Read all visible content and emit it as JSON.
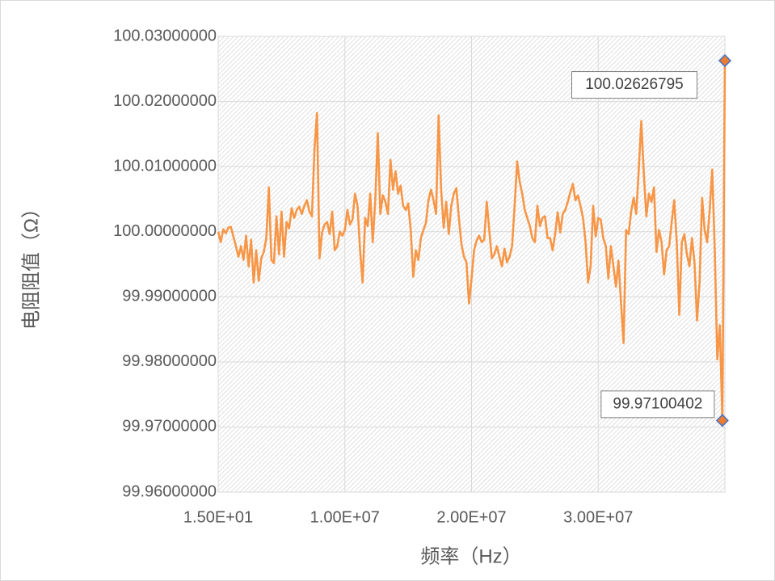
{
  "chart_data": {
    "type": "line",
    "x_title": "频率（Hz）",
    "y_title": "电阻阻值（Ω）",
    "xlim": [
      15,
      40000015
    ],
    "ylim": [
      99.96,
      100.03
    ],
    "xticks": [
      {
        "value": 15,
        "label": "1.50E+01"
      },
      {
        "value": 10000015,
        "label": "1.00E+07"
      },
      {
        "value": 20000015,
        "label": "2.00E+07"
      },
      {
        "value": 30000015,
        "label": "3.00E+07"
      }
    ],
    "yticks": [
      {
        "value": 99.96,
        "label": "99.96000000"
      },
      {
        "value": 99.97,
        "label": "99.97000000"
      },
      {
        "value": 99.98,
        "label": "99.98000000"
      },
      {
        "value": 99.99,
        "label": "99.99000000"
      },
      {
        "value": 100.0,
        "label": "100.00000000"
      },
      {
        "value": 100.01,
        "label": "100.01000000"
      },
      {
        "value": 100.02,
        "label": "100.02000000"
      },
      {
        "value": 100.03,
        "label": "100.03000000"
      }
    ],
    "grid": true,
    "series": [
      {
        "color": "#f79646",
        "x": [
          15,
          200015,
          400015,
          600015,
          800015,
          1000015,
          1200015,
          1400015,
          1600015,
          1800015,
          2000015,
          2200015,
          2400015,
          2600015,
          2800015,
          3000015,
          3200015,
          3400015,
          3600015,
          3800015,
          4000015,
          4200015,
          4400015,
          4600015,
          4800015,
          5000015,
          5200015,
          5400015,
          5600015,
          5800015,
          6000015,
          6200015,
          6400015,
          6600015,
          6800015,
          7000015,
          7200015,
          7400015,
          7600015,
          7800015,
          8000015,
          8200015,
          8400015,
          8600015,
          8800015,
          9000015,
          9200015,
          9400015,
          9600015,
          9800015,
          10000015,
          10200015,
          10400015,
          10600015,
          10800015,
          11000015,
          11200015,
          11400015,
          11600015,
          11800015,
          12000015,
          12200015,
          12400015,
          12600015,
          12800015,
          13000015,
          13200015,
          13400015,
          13600015,
          13800015,
          14000015,
          14200015,
          14400015,
          14600015,
          14800015,
          15000015,
          15200015,
          15400015,
          15600015,
          15800015,
          16000015,
          16200015,
          16400015,
          16600015,
          16800015,
          17000015,
          17200015,
          17400015,
          17600015,
          17800015,
          18000015,
          18200015,
          18400015,
          18600015,
          18800015,
          19000015,
          19200015,
          19400015,
          19600015,
          19800015,
          20000015,
          20200015,
          20400015,
          20600015,
          20800015,
          21000015,
          21200015,
          21400015,
          21600015,
          21800015,
          22000015,
          22200015,
          22400015,
          22600015,
          22800015,
          23000015,
          23200015,
          23400015,
          23600015,
          23800015,
          24000015,
          24200015,
          24400015,
          24600015,
          24800015,
          25000015,
          25200015,
          25400015,
          25600015,
          25800015,
          26000015,
          26200015,
          26400015,
          26600015,
          26800015,
          27000015,
          27200015,
          27400015,
          27600015,
          27800015,
          28000015,
          28200015,
          28400015,
          28600015,
          28800015,
          29000015,
          29200015,
          29400015,
          29600015,
          29800015,
          30000015,
          30200015,
          30400015,
          30600015,
          30800015,
          31000015,
          31200015,
          31400015,
          31600015,
          31800015,
          32000015,
          32200015,
          32400015,
          32600015,
          32800015,
          33000015,
          33200015,
          33400015,
          33600015,
          33800015,
          34000015,
          34200015,
          34400015,
          34600015,
          34800015,
          35000015,
          35200015,
          35400015,
          35600015,
          35800015,
          36000015,
          36200015,
          36400015,
          36600015,
          36800015,
          37000015,
          37200015,
          37400015,
          37600015,
          37800015,
          38000015,
          38200015,
          38400015,
          38600015,
          38800015,
          39000015,
          39200015,
          39400015,
          39600015,
          39800015,
          40000015
        ],
        "values": [
          100,
          99.99839,
          100.00037,
          99.99975,
          100.00062,
          100.00074,
          99.99926,
          99.99777,
          99.99616,
          99.99777,
          99.99566,
          99.99938,
          99.99467,
          99.99876,
          99.99219,
          99.99715,
          99.99244,
          99.99591,
          99.9969,
          99.99901,
          100.00682,
          99.99566,
          99.99516,
          100.00236,
          99.99653,
          100.0031,
          99.99616,
          100.00149,
          100.0005,
          100.0036,
          100.00211,
          100.00335,
          100.00384,
          100.00273,
          100.00397,
          100.00484,
          100.0031,
          100.00236,
          100.01265,
          100.01823,
          99.99591,
          99.99988,
          100.00112,
          100.00149,
          99.99963,
          100.0031,
          99.99715,
          99.99777,
          100,
          99.99938,
          100.00025,
          100.00335,
          100.00112,
          100.00186,
          100.00583,
          100.00397,
          99.99715,
          99.99219,
          100.00211,
          100.00087,
          100.00583,
          99.99839,
          100.00484,
          100.01513,
          100.00273,
          100.00558,
          100.00459,
          100.00273,
          100.01104,
          100.00645,
          100.0093,
          100.00583,
          100.00707,
          100.00397,
          100.00335,
          100.00434,
          100.00025,
          99.99306,
          99.99715,
          99.99566,
          99.99901,
          100.00025,
          100.00136,
          100.00484,
          100.00645,
          100.00484,
          100.00273,
          100.01786,
          100.00645,
          100.00062,
          100.00459,
          99.99963,
          100.00397,
          100.00583,
          100.0067,
          100.00211,
          99.99814,
          99.99616,
          99.99529,
          99.98896,
          99.99281,
          99.99715,
          99.99864,
          99.99938,
          99.99839,
          99.99876,
          100.00459,
          100.00025,
          99.99591,
          99.99653,
          99.99777,
          99.99616,
          99.99467,
          99.9974,
          99.99529,
          99.99616,
          99.99777,
          100.00397,
          100.01079,
          100.00769,
          100.00583,
          100.00335,
          100.00211,
          100.00087,
          99.99901,
          99.99839,
          100.00397,
          100.00087,
          100.00211,
          100.00236,
          99.99901,
          99.99901,
          99.99715,
          99.99963,
          100.00298,
          99.99988,
          100.00273,
          100.00335,
          100.00459,
          100.00608,
          100.00732,
          100.00484,
          100.00558,
          100.00397,
          100.00211,
          99.99839,
          99.99219,
          99.99467,
          100.00397,
          99.99926,
          100.00211,
          100.00186,
          99.99901,
          99.99777,
          99.99281,
          99.99777,
          99.99467,
          99.99157,
          99.99554,
          99.98909,
          99.98289,
          100.00025,
          99.99963,
          100.0031,
          100.00521,
          100.00273,
          100.00955,
          100.01699,
          100.00893,
          100.00236,
          100.00583,
          100.00459,
          100.00682,
          99.9969,
          100.00025,
          99.99839,
          99.99343,
          99.99715,
          99.99777,
          100.00149,
          100.00484,
          99.99839,
          99.98723,
          99.99839,
          99.99963,
          99.99653,
          99.99467,
          99.99901,
          99.99529,
          99.98636,
          99.99219,
          100.00521,
          100.00025,
          99.99839,
          100.00335,
          100.00955,
          99.99715,
          99.98041,
          99.98562,
          99.97100402,
          100.02626795
        ]
      }
    ],
    "annotations": [
      {
        "x": 39800015,
        "value": 99.97100402,
        "label": "99.97100402"
      },
      {
        "x": 40000015,
        "value": 100.02626795,
        "label": "100.02626795"
      }
    ]
  }
}
